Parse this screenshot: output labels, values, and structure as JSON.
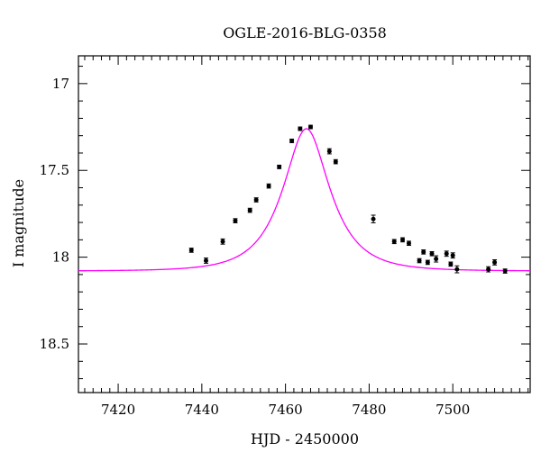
{
  "chart_data": {
    "type": "scatter",
    "title": "OGLE-2016-BLG-0358",
    "xlabel": "HJD - 2450000",
    "ylabel": "I magnitude",
    "xlim": [
      7410.5,
      7518.5
    ],
    "ylim": [
      18.78,
      16.84
    ],
    "y_inverted": true,
    "xticks": [
      7420,
      7440,
      7460,
      7480,
      7500
    ],
    "yticks": [
      17,
      17.5,
      18,
      18.5
    ],
    "xtick_labels": [
      "7420",
      "7440",
      "7460",
      "7480",
      "7500"
    ],
    "ytick_labels": [
      "17",
      "17.5",
      "18",
      "18.5"
    ],
    "model_color": "#ff00ff",
    "point_color": "#000000",
    "model": {
      "baseline": 18.08,
      "peak_time": 7465.0,
      "peak_mag": 17.26,
      "tE": 9.5
    },
    "series": [
      {
        "kind": "points",
        "x": [
          7437.5,
          7441.0,
          7445.0,
          7448.0,
          7451.5,
          7453.0,
          7456.0,
          7458.5,
          7461.5,
          7463.5,
          7466.0,
          7470.5,
          7472.0,
          7481.0,
          7486.0,
          7488.0,
          7489.5,
          7492.0,
          7493.0,
          7494.0,
          7495.0,
          7496.0,
          7498.5,
          7499.5,
          7500.0,
          7501.0,
          7508.5,
          7510.0,
          7512.5
        ],
        "y": [
          17.96,
          18.02,
          17.91,
          17.79,
          17.73,
          17.67,
          17.59,
          17.48,
          17.33,
          17.26,
          17.25,
          17.39,
          17.45,
          17.78,
          17.91,
          17.9,
          17.92,
          18.02,
          17.97,
          18.03,
          17.98,
          18.01,
          17.98,
          18.04,
          17.99,
          18.07,
          18.07,
          18.03,
          18.08
        ],
        "yerr": [
          0.012,
          0.015,
          0.015,
          0.012,
          0.012,
          0.012,
          0.012,
          0.01,
          0.01,
          0.01,
          0.01,
          0.015,
          0.012,
          0.022,
          0.012,
          0.012,
          0.012,
          0.012,
          0.012,
          0.012,
          0.012,
          0.018,
          0.015,
          0.012,
          0.015,
          0.02,
          0.015,
          0.015,
          0.012
        ]
      }
    ]
  }
}
